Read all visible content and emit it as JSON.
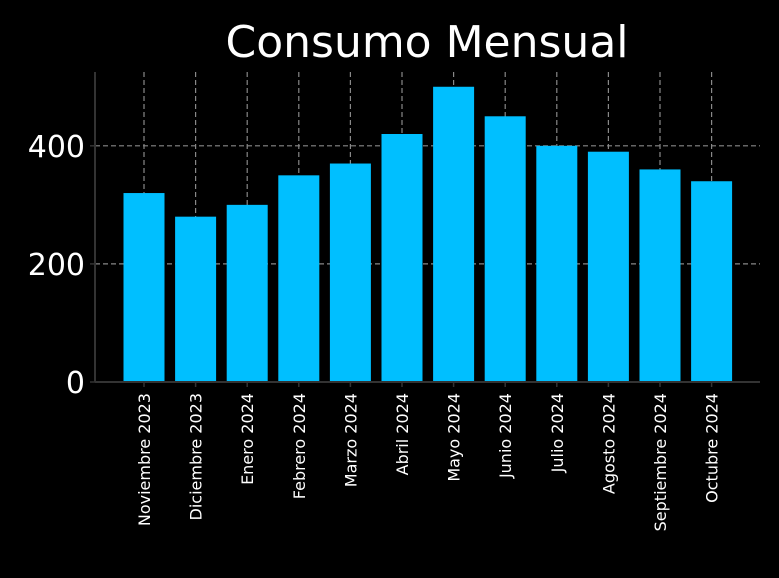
{
  "chart_data": {
    "type": "bar",
    "title": "Consumo Mensual",
    "xlabel": "",
    "ylabel": "",
    "categories": [
      "Noviembre 2023",
      "Diciembre 2023",
      "Enero 2024",
      "Febrero 2024",
      "Marzo 2024",
      "Abril 2024",
      "Mayo 2024",
      "Junio 2024",
      "Julio 2024",
      "Agosto 2024",
      "Septiembre 2024",
      "Octubre 2024"
    ],
    "values": [
      320,
      280,
      300,
      350,
      370,
      420,
      500,
      450,
      400,
      390,
      360,
      340
    ],
    "ylim": [
      0,
      525
    ],
    "yticks": [
      0,
      200,
      400
    ],
    "grid": true,
    "legend": "none",
    "colors": {
      "background": "#000000",
      "bar": "#00bfff",
      "grid": "#888888",
      "axis": "#333333",
      "text": "#ffffff"
    }
  }
}
